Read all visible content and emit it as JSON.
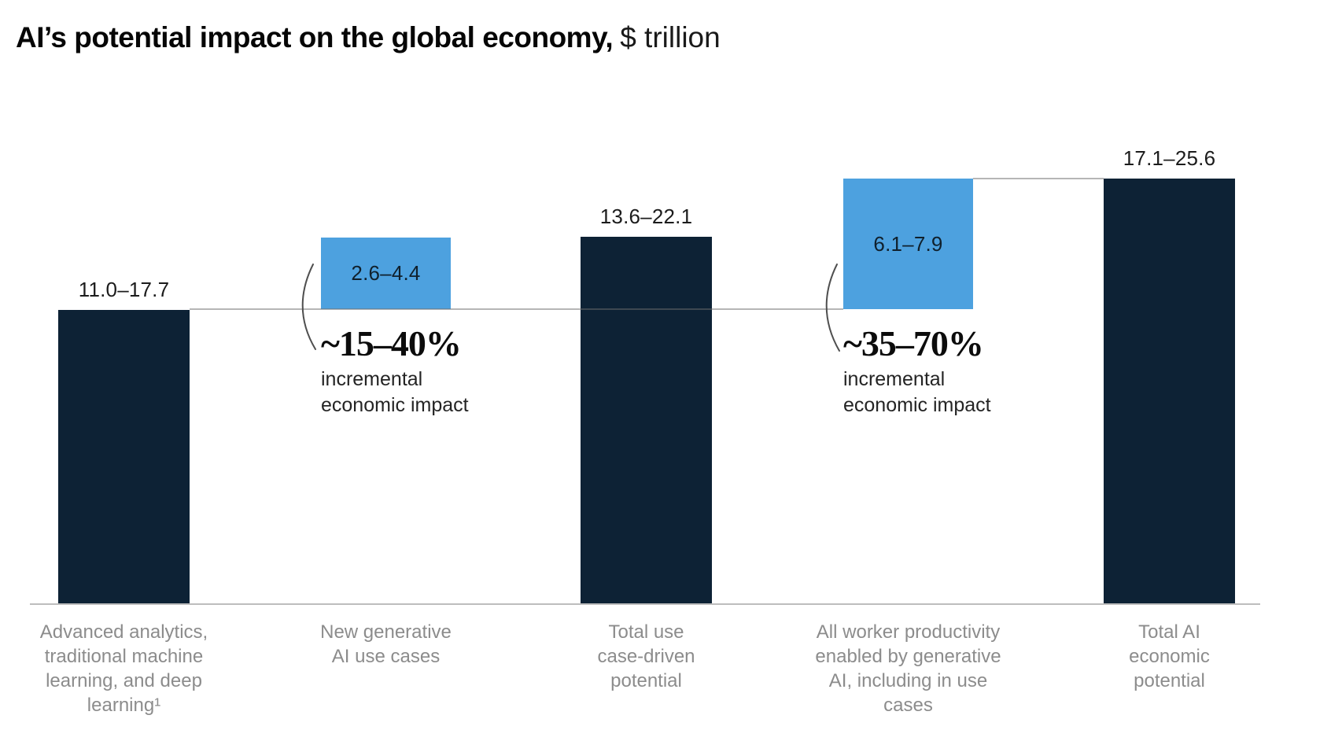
{
  "title": {
    "bold": "AI’s potential impact on the global economy,",
    "unit": "$ trillion"
  },
  "colors": {
    "background": "#ffffff",
    "dark_bar": "#0d2235",
    "blue_bar": "#4da1df",
    "axis": "#bdbdbd",
    "connector": "rgba(110,110,110,0.5)",
    "arc": "#4f4f4f",
    "value_text": "#1c1c1c",
    "category_text": "#8c8c8c"
  },
  "chart_data": {
    "type": "bar",
    "subtype": "waterfall-with-range-labels",
    "title": "AI’s potential impact on the global economy",
    "unit": "$ trillion",
    "ylabel": "",
    "xlabel": "",
    "ylim": [
      0,
      27
    ],
    "grid": false,
    "legend": "none",
    "bars": [
      {
        "id": "advanced-analytics",
        "role": "total",
        "color_key": "dark_bar",
        "value_label": "11.0–17.7",
        "low": 11.0,
        "high": 17.7,
        "starts_at": 0,
        "category": "Advanced analytics, traditional machine learning, and deep learning¹",
        "category_lines": [
          "Advanced analytics,",
          "traditional machine",
          "learning, and deep",
          "learning¹"
        ]
      },
      {
        "id": "new-generative-ai-use-cases",
        "role": "increment",
        "color_key": "blue_bar",
        "value_label": "2.6–4.4",
        "low": 2.6,
        "high": 4.4,
        "starts_at_level": "11.0–17.7",
        "category": "New generative AI use cases",
        "category_lines": [
          "New generative",
          "AI use cases"
        ],
        "annotation": {
          "headline": "~15–40%",
          "lines": [
            "incremental",
            "economic impact"
          ]
        }
      },
      {
        "id": "total-use-case-driven-potential",
        "role": "total",
        "color_key": "dark_bar",
        "value_label": "13.6–22.1",
        "low": 13.6,
        "high": 22.1,
        "starts_at": 0,
        "category": "Total use case-driven potential",
        "category_lines": [
          "Total use",
          "case-driven",
          "potential"
        ]
      },
      {
        "id": "worker-productivity-enabled-by-genai",
        "role": "increment",
        "color_key": "blue_bar",
        "value_label": "6.1–7.9",
        "low": 6.1,
        "high": 7.9,
        "starts_at_level": "11.0–17.7",
        "category": "All worker productivity enabled by generative AI, including in use cases",
        "category_lines": [
          "All worker productivity",
          "enabled by generative",
          "AI, including in use",
          "cases"
        ],
        "annotation": {
          "headline": "~35–70%",
          "lines": [
            "incremental",
            "economic impact"
          ]
        }
      },
      {
        "id": "total-ai-economic-potential",
        "role": "total",
        "color_key": "dark_bar",
        "value_label": "17.1–25.6",
        "low": 17.1,
        "high": 25.6,
        "starts_at": 0,
        "category": "Total AI economic potential",
        "category_lines": [
          "Total AI",
          "economic",
          "potential"
        ]
      }
    ]
  }
}
